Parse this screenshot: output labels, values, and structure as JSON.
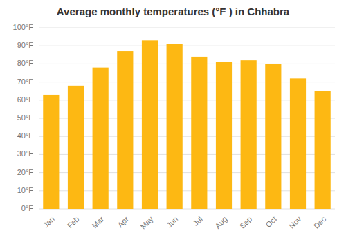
{
  "chart_data": {
    "type": "bar",
    "title": "Average monthly temperatures (°F ) in Chhabra",
    "categories": [
      "Jan",
      "Feb",
      "Mar",
      "Apr",
      "May",
      "Jun",
      "Jul",
      "Aug",
      "Sep",
      "Oct",
      "Nov",
      "Dec"
    ],
    "values": [
      63,
      68,
      78,
      87,
      93,
      91,
      84,
      81,
      82,
      80,
      72,
      65
    ],
    "color": "#FDB813",
    "ylim": [
      0,
      100
    ],
    "yticks": [
      {
        "value": 0,
        "label": "0°F"
      },
      {
        "value": 10,
        "label": "10°F"
      },
      {
        "value": 20,
        "label": "20°F"
      },
      {
        "value": 30,
        "label": "30°F"
      },
      {
        "value": 40,
        "label": "40°F"
      },
      {
        "value": 50,
        "label": "50°F"
      },
      {
        "value": 60,
        "label": "60°F"
      },
      {
        "value": 70,
        "label": "70°F"
      },
      {
        "value": 80,
        "label": "80°F"
      },
      {
        "value": 90,
        "label": "90°F"
      },
      {
        "value": 100,
        "label": "100°F"
      }
    ],
    "grid": true
  }
}
